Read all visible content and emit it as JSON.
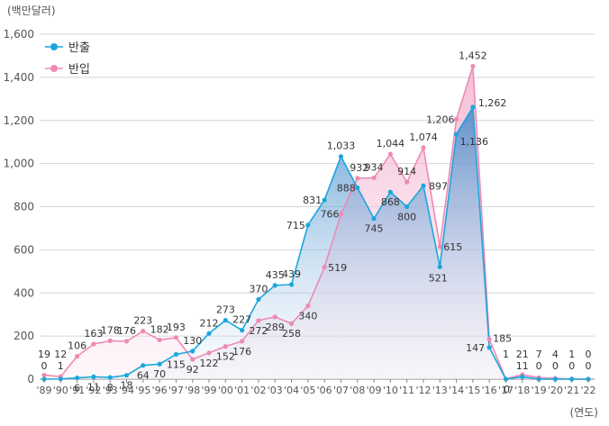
{
  "chart_data": {
    "type": "area",
    "y_unit": "(백만달러)",
    "x_unit": "(연도)",
    "ylim": [
      0,
      1600
    ],
    "y_ticks": [
      "0",
      "200",
      "400",
      "600",
      "800",
      "1,000",
      "1,200",
      "1,400",
      "1,600"
    ],
    "grid": true,
    "legend_position": "top-left",
    "categories": [
      "'89",
      "'90",
      "'91",
      "'92",
      "'93",
      "'94",
      "'95",
      "'96",
      "'97",
      "'98",
      "'99",
      "'00",
      "'01",
      "'02",
      "'03",
      "'04",
      "'05",
      "'06",
      "'07",
      "'08",
      "'09",
      "'10",
      "'11",
      "'12",
      "'13",
      "'14",
      "'15",
      "'16",
      "'17",
      "'18",
      "'19",
      "'20",
      "'21",
      "'22"
    ],
    "series": [
      {
        "name": "반출",
        "color": "#1aa7dc",
        "values": [
          0,
          1,
          6,
          11,
          8,
          18,
          64,
          70,
          115,
          130,
          212,
          273,
          227,
          370,
          435,
          439,
          715,
          831,
          1033,
          888,
          745,
          868,
          800,
          897,
          521,
          1136,
          1262,
          147,
          0,
          11,
          0,
          0,
          0,
          0
        ],
        "labels": [
          "0",
          "1",
          "6",
          "11",
          "8",
          "18",
          "64",
          "70",
          "115",
          "130",
          "212",
          "273",
          "227",
          "370",
          "435",
          "439",
          "715",
          "831",
          "1,033",
          "888",
          "745",
          "868",
          "800",
          "897",
          "521",
          "1,136",
          "1,262",
          "147",
          "0",
          "11",
          "0",
          "0",
          "0",
          "0"
        ]
      },
      {
        "name": "반입",
        "color": "#ee8ab5",
        "values": [
          19,
          12,
          106,
          163,
          178,
          176,
          223,
          182,
          193,
          92,
          122,
          152,
          176,
          272,
          289,
          258,
          340,
          519,
          766,
          932,
          934,
          1044,
          914,
          1074,
          615,
          1206,
          1452,
          185,
          1,
          21,
          7,
          4,
          1,
          0
        ],
        "labels": [
          "19",
          "12",
          "106",
          "163",
          "178",
          "176",
          "223",
          "182",
          "193",
          "92",
          "122",
          "152",
          "176",
          "272",
          "289",
          "258",
          "340",
          "519",
          "766",
          "932",
          "934",
          "1,044",
          "914",
          "1,074",
          "615",
          "1,206",
          "1,452",
          "185",
          "1",
          "21",
          "7",
          "4",
          "1",
          "0"
        ]
      }
    ]
  }
}
